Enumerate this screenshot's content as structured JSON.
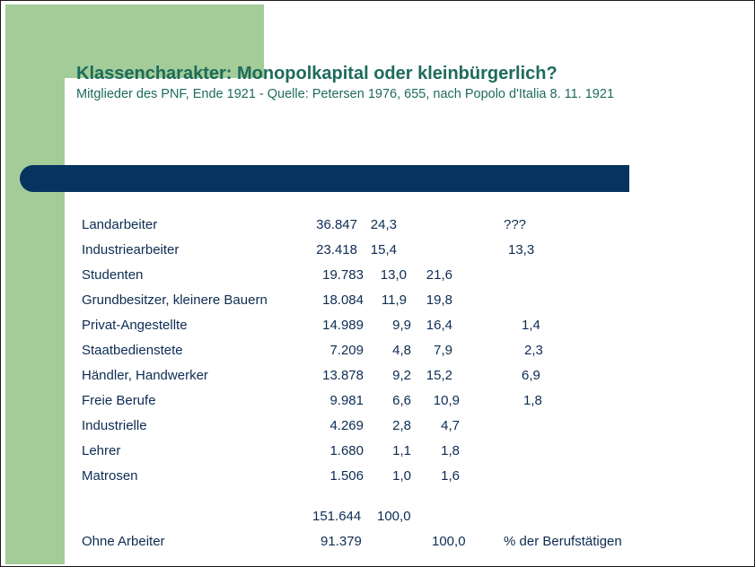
{
  "slide": {
    "title": "Klassencharakter: Monopolkapital oder kleinbürgerlich?",
    "subtitle": "Mitglieder des PNF, Ende 1921 - Quelle: Petersen 1976, 655, nach Popolo d'Italia 8. 11. 1921"
  },
  "table": {
    "rows": [
      {
        "label": "Landarbeiter",
        "count": "36.847",
        "pct": "24,3",
        "pct_no_workers": "",
        "note": "???"
      },
      {
        "label": "Industriearbeiter",
        "count": "23.418",
        "pct": "15,4",
        "pct_no_workers": "",
        "note": "13,3"
      },
      {
        "label": "Studenten",
        "count": "19.783",
        "pct": "13,0",
        "pct_no_workers": "21,6",
        "note": ""
      },
      {
        "label": "Grundbesitzer, kleinere Bauern",
        "count": "18.084",
        "pct": "11,9",
        "pct_no_workers": "19,8",
        "note": ""
      },
      {
        "label": "Privat-Angestellte",
        "count": "14.989",
        "pct": "9,9",
        "pct_no_workers": "16,4",
        "note": "1,4"
      },
      {
        "label": "Staatbedienstete",
        "count": "7.209",
        "pct": "4,8",
        "pct_no_workers": "7,9",
        "note": "2,3"
      },
      {
        "label": "Händler, Handwerker",
        "count": "13.878",
        "pct": "9,2",
        "pct_no_workers": "15,2",
        "note": "6,9"
      },
      {
        "label": "Freie Berufe",
        "count": "9.981",
        "pct": "6,6",
        "pct_no_workers": "10,9",
        "note": "1,8"
      },
      {
        "label": "Industrielle",
        "count": "4.269",
        "pct": "2,8",
        "pct_no_workers": "4,7",
        "note": ""
      },
      {
        "label": "Lehrer",
        "count": "1.680",
        "pct": "1,1",
        "pct_no_workers": "1,8",
        "note": ""
      },
      {
        "label": "Matrosen",
        "count": "1.506",
        "pct": "1,0",
        "pct_no_workers": "1,6",
        "note": ""
      }
    ],
    "total": {
      "label": "",
      "count": "151.644",
      "pct": "100,0",
      "pct_no_workers": "",
      "note": ""
    },
    "without_workers": {
      "label": "Ohne Arbeiter",
      "count": "91.379",
      "pct": "",
      "pct_no_workers": "100,0",
      "note": "% der Berufstätigen"
    }
  }
}
